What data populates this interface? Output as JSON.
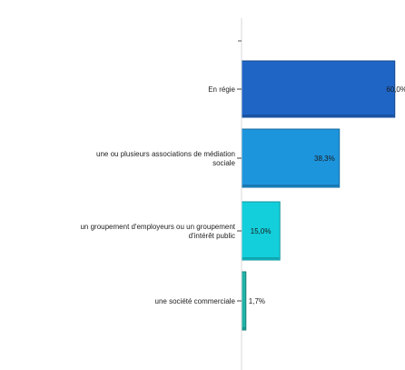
{
  "chart_data": {
    "type": "bar",
    "orientation": "horizontal",
    "categories": [
      [
        "En régie"
      ],
      [
        "une ou plusieurs associations de médiation",
        "sociale"
      ],
      [
        "un groupement d'employeurs ou un groupement",
        "d'intérêt public"
      ],
      [
        "une société commerciale"
      ]
    ],
    "values": [
      60.0,
      38.3,
      15.0,
      1.7
    ],
    "value_labels": [
      "60,0%",
      "38,3%",
      "15,0%",
      "1,7%"
    ],
    "colors": [
      "#1f65c6",
      "#1d95dd",
      "#13cfdc",
      "#20b3a6"
    ],
    "xlim": [
      0,
      64
    ],
    "grid": false,
    "legend": "none"
  }
}
